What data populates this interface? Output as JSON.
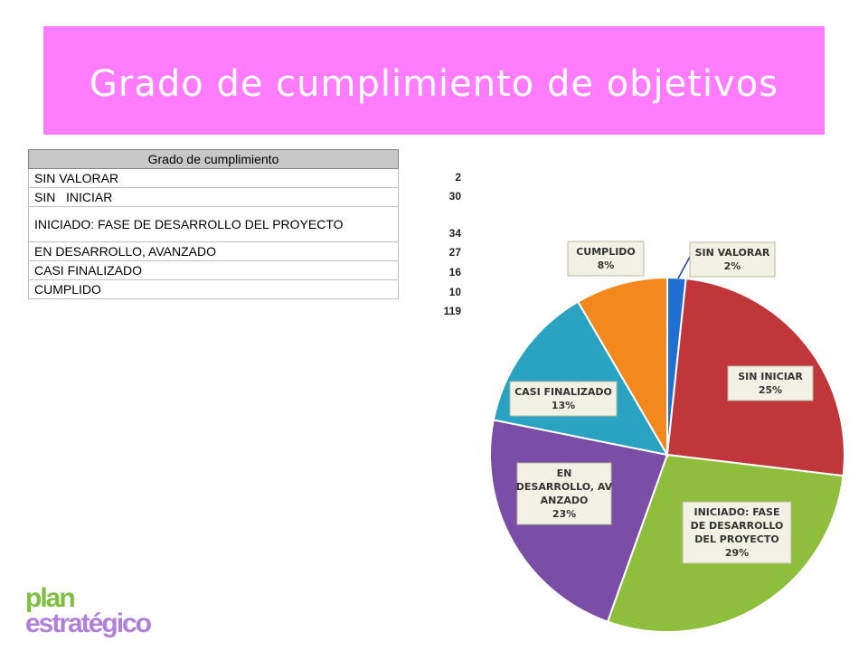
{
  "title": "Grado de cumplimiento de objetivos",
  "table": {
    "header": "Grado de cumplimiento",
    "rows": [
      {
        "label": "SIN VALORAR",
        "value": "2"
      },
      {
        "label": "SIN   INICIAR",
        "value": "30"
      },
      {
        "label": "INICIADO: FASE DE DESARROLLO DEL PROYECTO",
        "value": "34"
      },
      {
        "label": "EN DESARROLLO, AVANZADO",
        "value": "27"
      },
      {
        "label": "CASI FINALIZADO",
        "value": "16"
      },
      {
        "label": "CUMPLIDO",
        "value": "10"
      }
    ],
    "total": "119"
  },
  "chart_data": {
    "type": "pie",
    "categories": [
      "SIN VALORAR",
      "SIN   INICIAR",
      "INICIADO: FASE DE DESARROLLO DEL PROYECTO",
      "EN DESARROLLO, AVANZADO",
      "CASI FINALIZADO",
      "CUMPLIDO"
    ],
    "values": [
      2,
      30,
      34,
      27,
      16,
      10
    ],
    "percent_labels": [
      "2%",
      "25%",
      "29%",
      "23%",
      "13%",
      "8%"
    ],
    "colors": [
      "#1f6fd0",
      "#c0363a",
      "#8fbe3c",
      "#7a4ea6",
      "#2aa3c2",
      "#f3891c"
    ]
  },
  "logo": {
    "line1": "plan",
    "line2": "estratégico"
  }
}
